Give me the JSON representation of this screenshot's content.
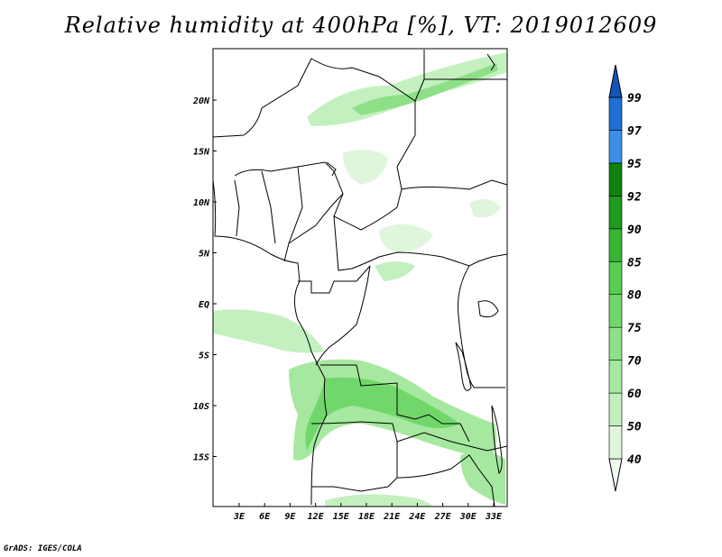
{
  "map": {
    "title": "Relative humidity at 400hPa [%], VT: 2019012609",
    "footer": "GrADS: IGES/COLA",
    "lon_labels": [
      "3E",
      "6E",
      "9E",
      "12E",
      "15E",
      "18E",
      "21E",
      "24E",
      "27E",
      "30E",
      "33E"
    ],
    "lat_labels": [
      "20N",
      "15N",
      "10N",
      "5N",
      "EQ",
      "5S",
      "10S",
      "15S"
    ],
    "colorbar": {
      "levels": [
        "40",
        "50",
        "60",
        "70",
        "75",
        "80",
        "85",
        "90",
        "92",
        "95",
        "97",
        "99"
      ],
      "colors": [
        "#f0fbef",
        "#dff6dc",
        "#c4f0c0",
        "#a6e89f",
        "#8ee087",
        "#72d76b",
        "#56cd4f",
        "#38b532",
        "#1f9a1c",
        "#0d820c",
        "#3a90e8",
        "#1f6fd6",
        "#1454b8"
      ]
    }
  }
}
